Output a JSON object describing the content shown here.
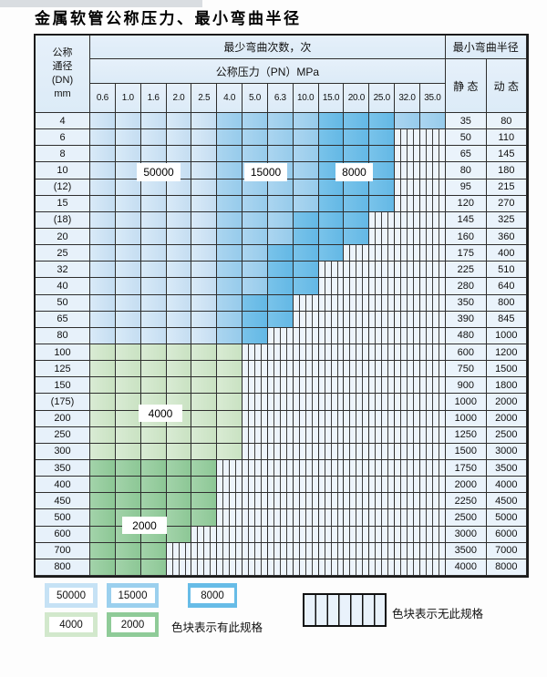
{
  "title": "金属软管公称压力、最小弯曲半径",
  "table": {
    "corner": {
      "lines": [
        "公称",
        "通径",
        "(DN)",
        "mm"
      ]
    },
    "cycles_header": "最少弯曲次数，次",
    "pn_header": "公称压力（PN）MPa",
    "radius_header": "最小弯曲半径",
    "static_header": "静 态",
    "dynamic_header": "动 态",
    "pressures": [
      "0.6",
      "1.0",
      "1.6",
      "2.0",
      "2.5",
      "4.0",
      "5.0",
      "6.3",
      "10.0",
      "15.0",
      "20.0",
      "25.0",
      "32.0",
      "35.0"
    ],
    "rows": [
      {
        "dn": "4",
        "cells": "LLLLLMMMMDDDMM",
        "static": "35",
        "dynamic": "80"
      },
      {
        "dn": "6",
        "cells": "LLLLLMMMMDDDSS",
        "static": "50",
        "dynamic": "110"
      },
      {
        "dn": "8",
        "cells": "LLLLLMMMMDDDSS",
        "static": "65",
        "dynamic": "145"
      },
      {
        "dn": "10",
        "cells": "LLLLLMMMMDDDSS",
        "static": "80",
        "dynamic": "180"
      },
      {
        "dn": "(12)",
        "cells": "LLLLLMMMMDDDSS",
        "static": "95",
        "dynamic": "215"
      },
      {
        "dn": "15",
        "cells": "LLLLLMMMMDDDSS",
        "static": "120",
        "dynamic": "270"
      },
      {
        "dn": "(18)",
        "cells": "LLLLLMMMDDDSSS",
        "static": "145",
        "dynamic": "325"
      },
      {
        "dn": "20",
        "cells": "LLLLLMMMDDDSSS",
        "static": "160",
        "dynamic": "360"
      },
      {
        "dn": "25",
        "cells": "LLLLLMMDDDSSSS",
        "static": "175",
        "dynamic": "400"
      },
      {
        "dn": "32",
        "cells": "LLLLLMMDDSSSSS",
        "static": "225",
        "dynamic": "510"
      },
      {
        "dn": "40",
        "cells": "LLLLLMMDDSSSSS",
        "static": "280",
        "dynamic": "640"
      },
      {
        "dn": "50",
        "cells": "LLLLLMDDSSSSSS",
        "static": "350",
        "dynamic": "800"
      },
      {
        "dn": "65",
        "cells": "LLLLLMDDSSSSSS",
        "static": "390",
        "dynamic": "845"
      },
      {
        "dn": "80",
        "cells": "LLLLLMDSSSSSSS",
        "static": "480",
        "dynamic": "1000"
      },
      {
        "dn": "100",
        "cells": "GGGGGGSSSSSSSS",
        "static": "600",
        "dynamic": "1200"
      },
      {
        "dn": "125",
        "cells": "GGGGGGSSSSSSSS",
        "static": "750",
        "dynamic": "1500"
      },
      {
        "dn": "150",
        "cells": "GGGGGGSSSSSSSS",
        "static": "900",
        "dynamic": "1800"
      },
      {
        "dn": "(175)",
        "cells": "GGGGGGSSSSSSSS",
        "static": "1000",
        "dynamic": "2000"
      },
      {
        "dn": "200",
        "cells": "GGGGGGSSSSSSSS",
        "static": "1000",
        "dynamic": "2000"
      },
      {
        "dn": "250",
        "cells": "GGGGGGSSSSSSSS",
        "static": "1250",
        "dynamic": "2500"
      },
      {
        "dn": "300",
        "cells": "GGGGGGSSSSSSSS",
        "static": "1500",
        "dynamic": "3000"
      },
      {
        "dn": "350",
        "cells": "HHHHHSSSSSSSSS",
        "static": "1750",
        "dynamic": "3500"
      },
      {
        "dn": "400",
        "cells": "HHHHHSSSSSSSSS",
        "static": "2000",
        "dynamic": "4000"
      },
      {
        "dn": "450",
        "cells": "HHHHHSSSSSSSSS",
        "static": "2250",
        "dynamic": "4500"
      },
      {
        "dn": "500",
        "cells": "HHHHHSSSSSSSSS",
        "static": "2500",
        "dynamic": "5000"
      },
      {
        "dn": "600",
        "cells": "HHHHSSSSSSSSSS",
        "static": "3000",
        "dynamic": "6000"
      },
      {
        "dn": "700",
        "cells": "HHHSSSSSSSSSSS",
        "static": "3500",
        "dynamic": "7000"
      },
      {
        "dn": "800",
        "cells": "HHHSSSSSSSSSSS",
        "static": "4000",
        "dynamic": "8000"
      }
    ]
  },
  "zone_labels": {
    "z50000": "50000",
    "z15000": "15000",
    "z8000": "8000",
    "z4000": "4000",
    "z2000": "2000"
  },
  "colors": {
    "L": [
      "#d9eaf8",
      "#c4ddf1"
    ],
    "M": [
      "#abd5f0",
      "#96cbeb"
    ],
    "D": [
      "#79c3ea",
      "#63b8e5"
    ],
    "G": [
      "#d9ebd4",
      "#c9e2c2"
    ],
    "H": [
      "#a3d3aa",
      "#8cc795"
    ]
  },
  "legend": {
    "sw50000": "50000",
    "sw15000": "15000",
    "sw8000": "8000",
    "sw4000": "4000",
    "sw2000": "2000",
    "has_spec": "色块表示有此规格",
    "no_spec": "色块表示无此规格"
  }
}
